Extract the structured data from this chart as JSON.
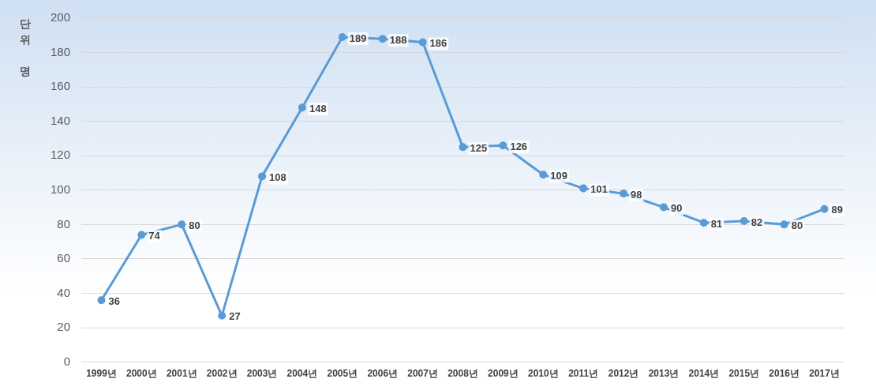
{
  "chart_data": {
    "type": "line",
    "ylabel": "단위 명",
    "categories": [
      "1999년",
      "2000년",
      "2001년",
      "2002년",
      "2003년",
      "2004년",
      "2005년",
      "2006년",
      "2007년",
      "2008년",
      "2009년",
      "2010년",
      "2011년",
      "2012년",
      "2013년",
      "2014년",
      "2015년",
      "2016년",
      "2017년"
    ],
    "series": [
      {
        "color": "#5b9bd5",
        "values": [
          36,
          74,
          80,
          27,
          108,
          148,
          189,
          188,
          186,
          125,
          126,
          109,
          101,
          98,
          90,
          81,
          82,
          80,
          89
        ]
      }
    ],
    "ylim": [
      0,
      200
    ],
    "yticks": [
      0,
      20,
      40,
      60,
      80,
      100,
      120,
      140,
      160,
      180,
      200
    ],
    "grid": "y",
    "marker": "circle",
    "line_style": "solid",
    "data_labels": true,
    "legend": false
  }
}
